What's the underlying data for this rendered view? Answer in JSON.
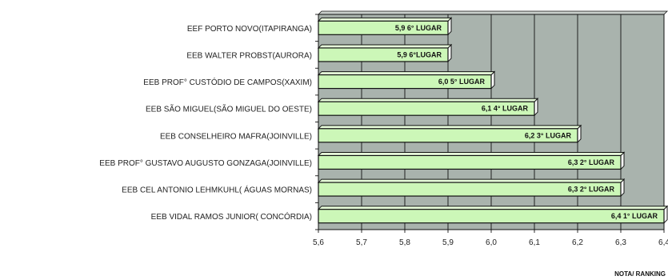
{
  "chart_data": {
    "type": "bar",
    "orientation": "horizontal",
    "categories": [
      "EEF PORTO NOVO(ITAPIRANGA)",
      "EEB WALTER PROBST(AURORA)",
      "EEB PROF° CUSTÓDIO DE CAMPOS(XAXIM)",
      "EEB SÃO MIGUEL(SÃO MIGUEL DO OESTE)",
      "EEB CONSELHEIRO MAFRA(JOINVILLE)",
      "EEB PROF° GUSTAVO AUGUSTO GONZAGA(JOINVILLE)",
      "EEB CEL ANTONIO LEHMKUHL( ÁGUAS MORNAS)",
      "EEB VIDAL RAMOS JUNIOR( CONCÓRDIA)"
    ],
    "values": [
      5.9,
      5.9,
      6.0,
      6.1,
      6.2,
      6.3,
      6.3,
      6.4
    ],
    "data_labels": [
      "5,9  6° LUGAR",
      "5,9  6°LUGAR",
      "6,0  5° LUGAR",
      "6,1  4° LUGAR",
      "6,2  3° LUGAR",
      "6,3  2° LUGAR",
      "6,3  2° LUGAR",
      "6,4  1° LUGAR"
    ],
    "ticks": [
      "5,6",
      "5,7",
      "5,8",
      "5,9",
      "6,0",
      "6,1",
      "6,2",
      "6,3",
      "6,4"
    ],
    "xlim": [
      5.6,
      6.4
    ],
    "xlabel": "NOTA/ RANKING",
    "grid": true,
    "colors": {
      "plot_background": "#a9b3ad",
      "bar_fill": "#ccf7b8",
      "bar_edge": "#111111",
      "grid": "#111111"
    }
  }
}
